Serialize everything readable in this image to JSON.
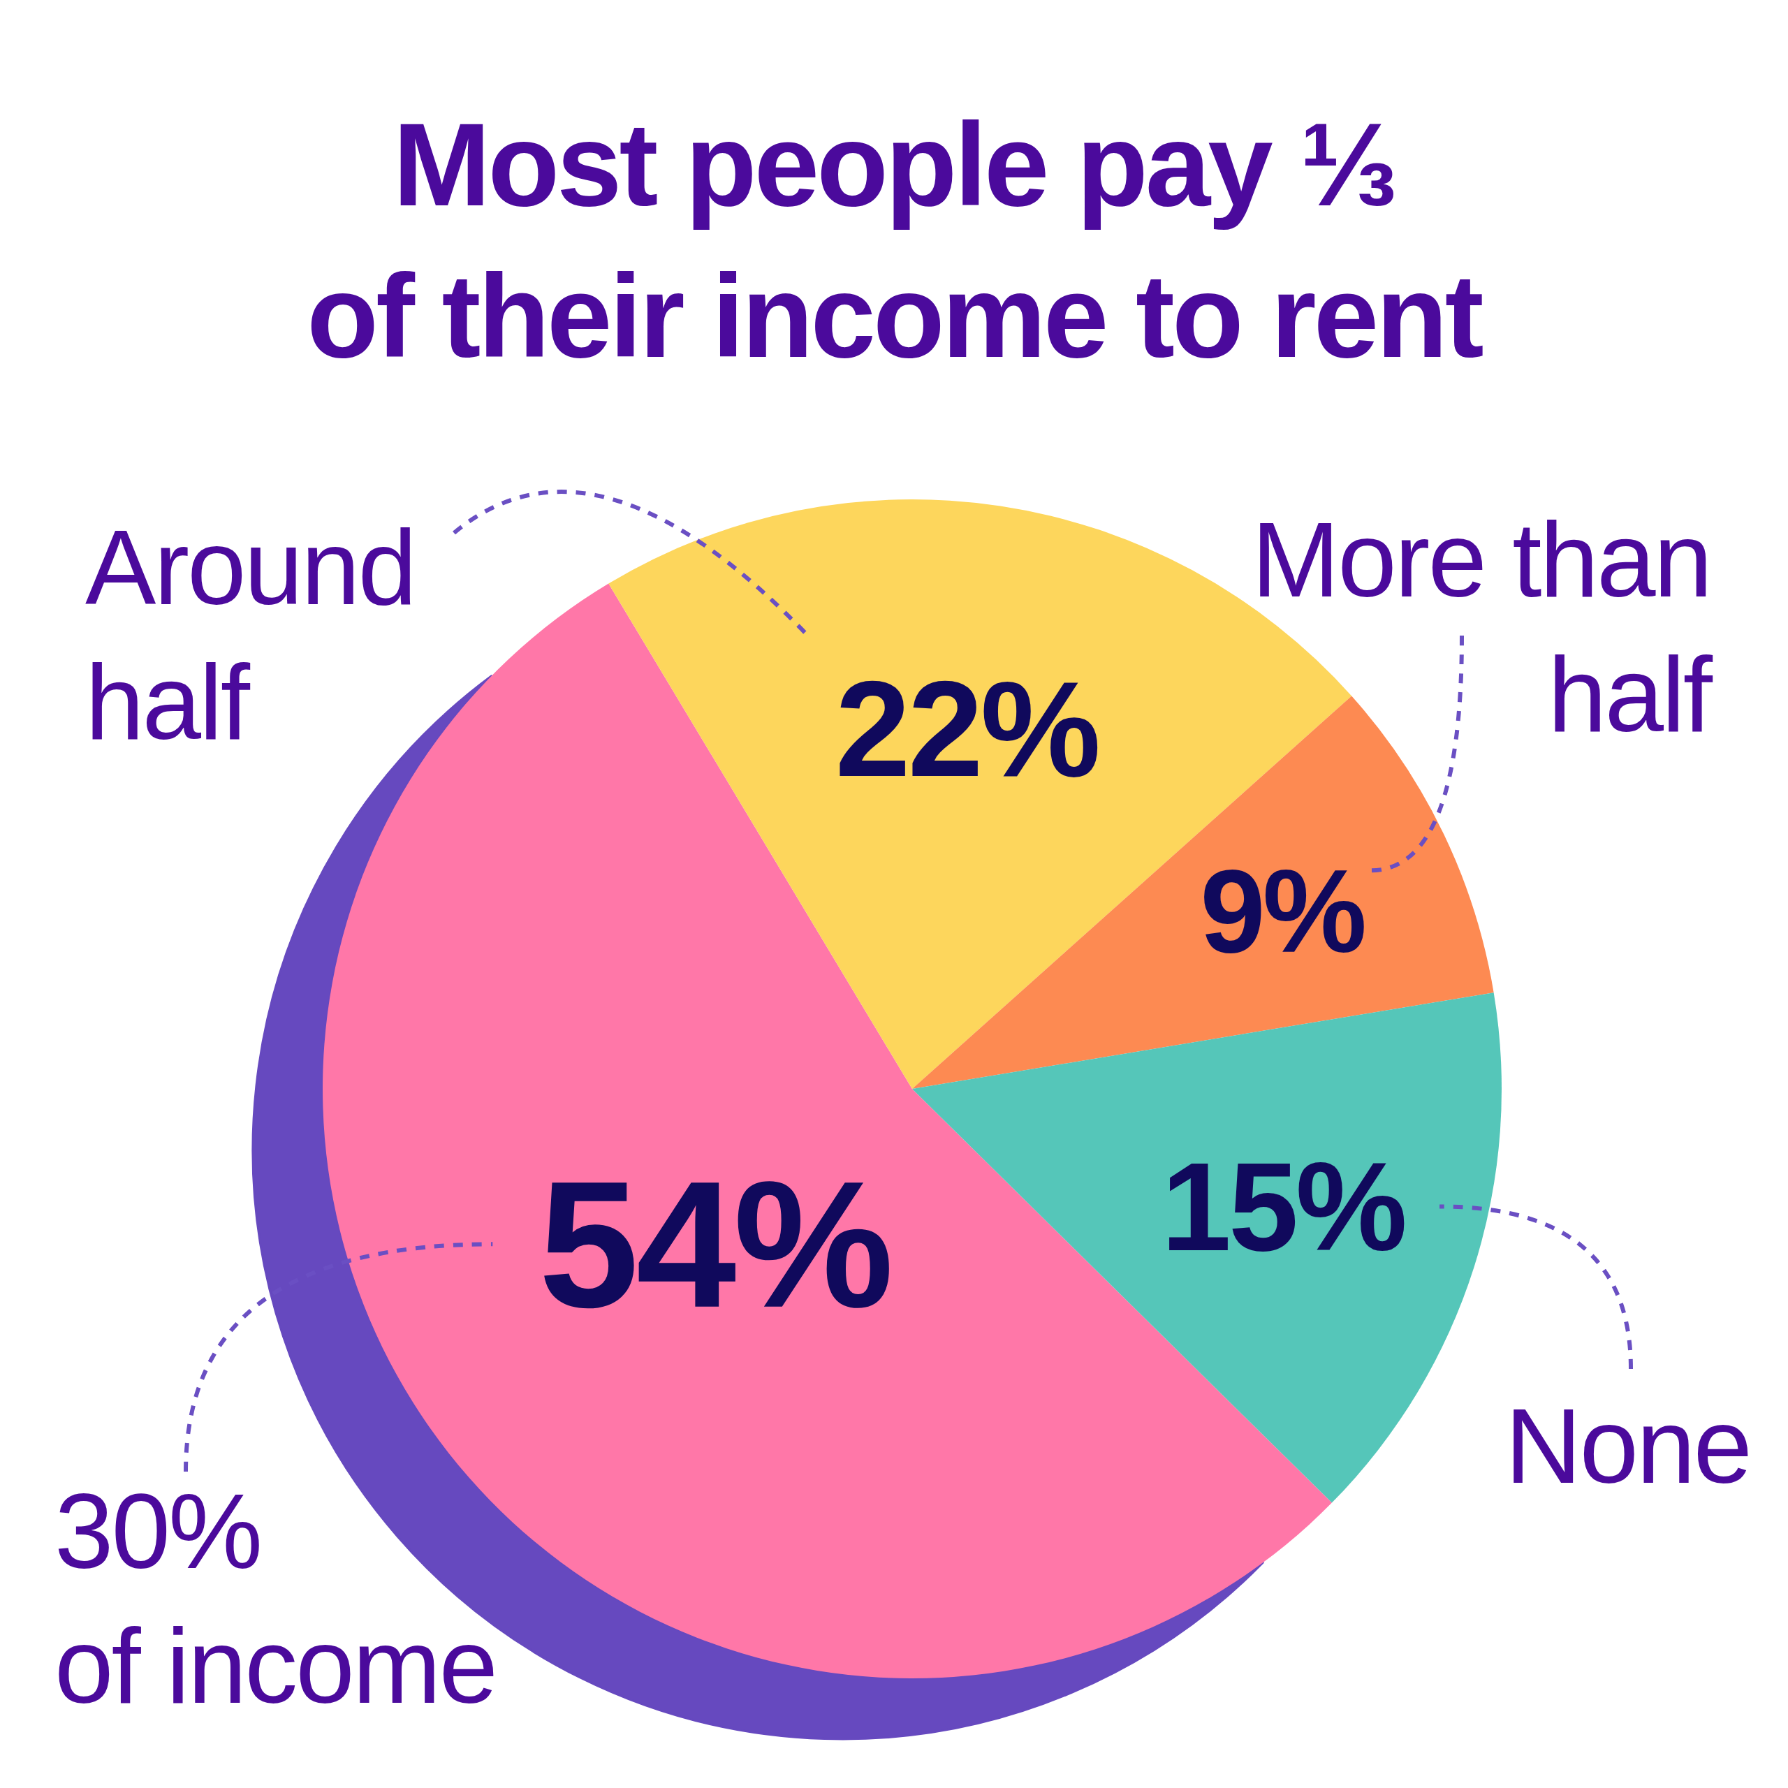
{
  "chart_data": {
    "type": "pie",
    "title": "Most people pay ⅓\nof their income to rent",
    "categories": [
      "30%\nof income",
      "Around\nhalf",
      "More than\nhalf",
      "None"
    ],
    "values": [
      54,
      22,
      9,
      15
    ],
    "colors": [
      "#ff77a8",
      "#fdd65c",
      "#fd8a52",
      "#55c6b9"
    ],
    "value_labels": [
      "54%",
      "22%",
      "9%",
      "15%"
    ]
  }
}
